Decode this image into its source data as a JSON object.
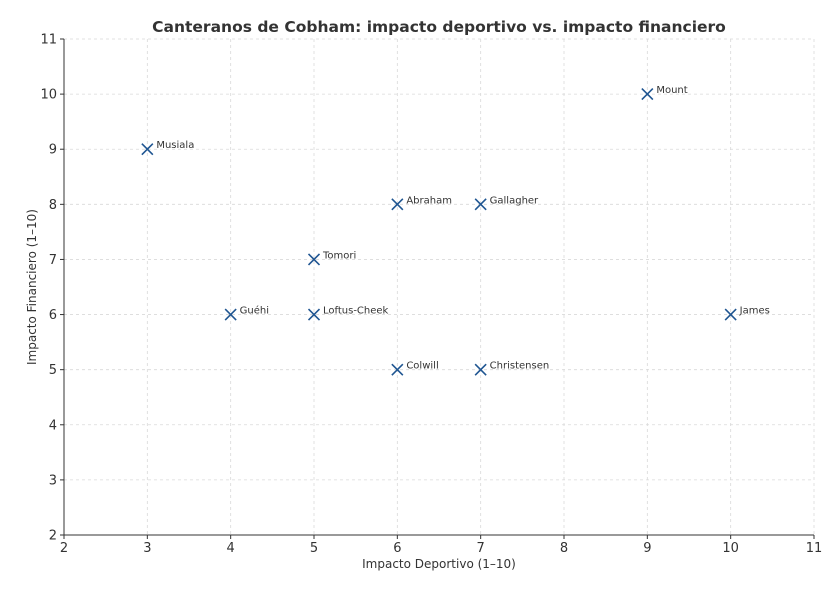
{
  "chart_data": {
    "type": "scatter",
    "title": "Canteranos de Cobham: impacto deportivo vs. impacto financiero",
    "xlabel": "Impacto Deportivo (1–10)",
    "ylabel": "Impacto Financiero (1–10)",
    "xlim": [
      2,
      11
    ],
    "ylim": [
      2,
      11
    ],
    "xticks": [
      2,
      3,
      4,
      5,
      6,
      7,
      8,
      9,
      10,
      11
    ],
    "yticks": [
      2,
      3,
      4,
      5,
      6,
      7,
      8,
      9,
      10,
      11
    ],
    "grid": true,
    "marker": "x",
    "marker_color": "#1f5591",
    "points": [
      {
        "label": "Musiala",
        "x": 3,
        "y": 9
      },
      {
        "label": "Guéhi",
        "x": 4,
        "y": 6
      },
      {
        "label": "Tomori",
        "x": 5,
        "y": 7
      },
      {
        "label": "Loftus-Cheek",
        "x": 5,
        "y": 6
      },
      {
        "label": "Abraham",
        "x": 6,
        "y": 8
      },
      {
        "label": "Colwill",
        "x": 6,
        "y": 5
      },
      {
        "label": "Gallagher",
        "x": 7,
        "y": 8
      },
      {
        "label": "Christensen",
        "x": 7,
        "y": 5
      },
      {
        "label": "Mount",
        "x": 9,
        "y": 10
      },
      {
        "label": "James",
        "x": 10,
        "y": 6
      }
    ]
  }
}
